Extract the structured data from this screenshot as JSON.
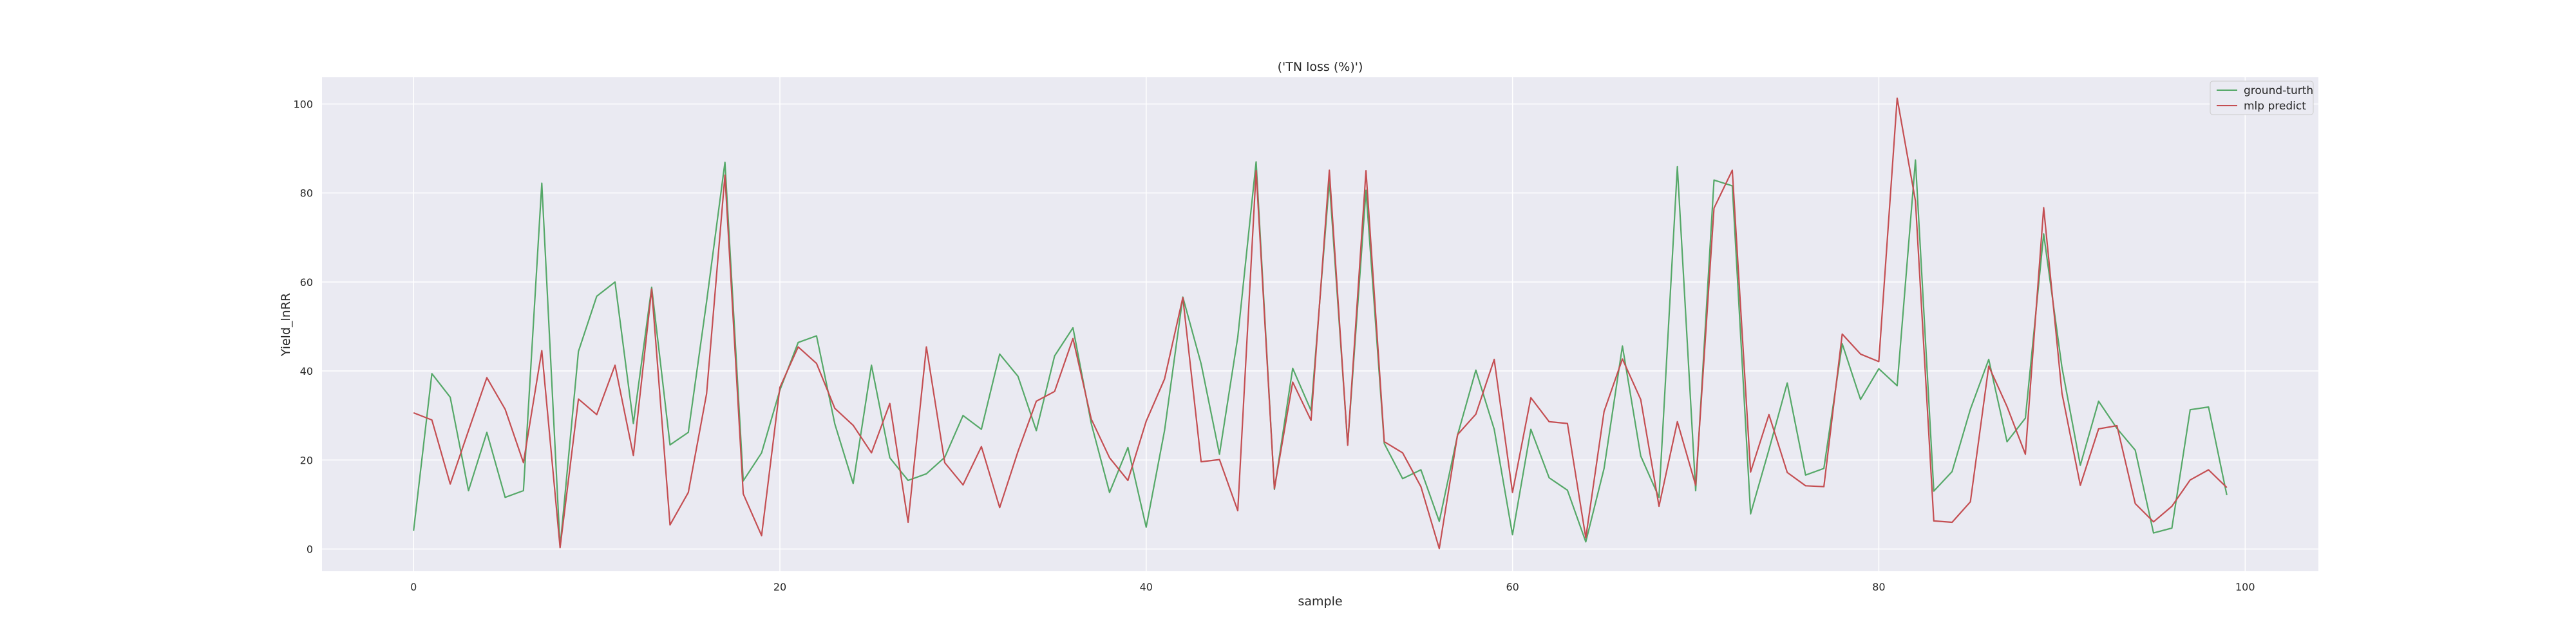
{
  "chart_data": {
    "type": "line",
    "title": "('TN loss (%)')",
    "xlabel": "sample",
    "ylabel": "Yield_lnRR",
    "xlim": [
      -5,
      104
    ],
    "ylim": [
      -5,
      106
    ],
    "xticks": [
      0,
      20,
      40,
      60,
      80,
      100
    ],
    "yticks": [
      0,
      20,
      40,
      60,
      80,
      100
    ],
    "grid": true,
    "legend_position": "top-right",
    "x": [
      0,
      1,
      2,
      3,
      4,
      5,
      6,
      7,
      8,
      9,
      10,
      11,
      12,
      13,
      14,
      15,
      16,
      17,
      18,
      19,
      20,
      21,
      22,
      23,
      24,
      25,
      26,
      27,
      28,
      29,
      30,
      31,
      32,
      33,
      34,
      35,
      36,
      37,
      38,
      39,
      40,
      41,
      42,
      43,
      44,
      45,
      46,
      47,
      48,
      49,
      50,
      51,
      52,
      53,
      54,
      55,
      56,
      57,
      58,
      59,
      60,
      61,
      62,
      63,
      64,
      65,
      66,
      67,
      68,
      69,
      70,
      71,
      72,
      73,
      74,
      75,
      76,
      77,
      78,
      79,
      80,
      81,
      82,
      83,
      84,
      85,
      86,
      87,
      88,
      89,
      90,
      91,
      92,
      93,
      94,
      95,
      96,
      97,
      98,
      99
    ],
    "series": [
      {
        "name": "ground-turth",
        "color": "#55a868",
        "values": [
          4.1,
          39.4,
          34.1,
          13.1,
          26.2,
          11.6,
          13.1,
          82.2,
          0.4,
          44.4,
          56.8,
          60.0,
          28.2,
          58.8,
          23.4,
          26.2,
          55.6,
          86.9,
          15.3,
          21.6,
          35.7,
          46.4,
          47.9,
          28.1,
          14.7,
          41.3,
          20.5,
          15.4,
          16.9,
          20.6,
          30.0,
          26.9,
          43.8,
          38.8,
          26.6,
          43.4,
          49.7,
          28.2,
          12.7,
          22.8,
          4.9,
          26.6,
          56.6,
          41.6,
          21.3,
          47.6,
          87.0,
          13.4,
          40.6,
          31.1,
          82.6,
          23.5,
          80.6,
          23.7,
          15.8,
          17.8,
          6.2,
          25.6,
          40.2,
          26.9,
          3.2,
          26.9,
          16.0,
          13.2,
          1.6,
          18.1,
          45.6,
          20.9,
          11.6,
          85.9,
          13.1,
          82.9,
          81.6,
          7.9,
          22.3,
          37.3,
          16.6,
          18.1,
          46.1,
          33.6,
          40.5,
          36.7,
          87.4,
          13.0,
          17.4,
          31.4,
          42.6,
          24.1,
          29.4,
          70.8,
          40.8,
          18.8,
          33.2,
          27.1,
          22.2,
          3.6,
          4.7,
          31.3,
          31.9,
          12.1
        ]
      },
      {
        "name": "mlp predict",
        "color": "#c44e52",
        "values": [
          30.6,
          29.0,
          14.6,
          26.6,
          38.5,
          31.4,
          19.4,
          44.6,
          0.3,
          33.7,
          30.2,
          41.3,
          21.0,
          58.4,
          5.4,
          12.7,
          34.9,
          84.0,
          12.4,
          3.0,
          36.3,
          45.4,
          41.7,
          31.6,
          27.8,
          21.6,
          32.7,
          6.0,
          45.4,
          19.4,
          14.4,
          23.0,
          9.3,
          21.9,
          33.2,
          35.4,
          47.3,
          29.2,
          20.5,
          15.4,
          28.7,
          38.2,
          56.5,
          19.6,
          20.1,
          8.6,
          85.0,
          13.6,
          37.5,
          28.9,
          85.1,
          23.3,
          85.0,
          24.1,
          21.6,
          14.0,
          0.1,
          25.7,
          30.3,
          42.6,
          12.7,
          34.0,
          28.6,
          28.2,
          2.5,
          30.9,
          42.7,
          33.6,
          9.6,
          28.6,
          14.3,
          76.6,
          85.1,
          17.3,
          30.2,
          17.2,
          14.2,
          14.0,
          48.3,
          43.8,
          42.1,
          101.3,
          78.2,
          6.3,
          6.0,
          10.6,
          41.1,
          32.0,
          21.3,
          76.7,
          35.0,
          14.3,
          27.0,
          27.7,
          10.2,
          6.1,
          9.6,
          15.5,
          17.8,
          13.8
        ]
      }
    ]
  }
}
